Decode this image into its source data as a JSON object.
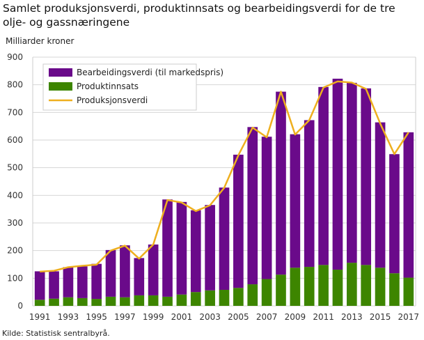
{
  "chart_data": {
    "type": "bar",
    "title": "Samlet produksjonsverdi, produktinnsats og bearbeidingsverdi for de tre olje- og gassnæringene",
    "ylabel": "Milliarder  kroner",
    "ylim": [
      0,
      900
    ],
    "yticks": [
      0,
      100,
      200,
      300,
      400,
      500,
      600,
      700,
      800,
      900
    ],
    "grid": true,
    "legend": "top-left",
    "categories": [
      "1991",
      "1992",
      "1993",
      "1994",
      "1995",
      "1996",
      "1997",
      "1998",
      "1999",
      "2000",
      "2001",
      "2002",
      "2003",
      "2004",
      "2005",
      "2006",
      "2007",
      "2008",
      "2009",
      "2010",
      "2011",
      "2012",
      "2013",
      "2014",
      "2015",
      "2016",
      "2017"
    ],
    "xtick_labels": [
      "1991",
      "1993",
      "1995",
      "1997",
      "1999",
      "2001",
      "2003",
      "2005",
      "2007",
      "2009",
      "2011",
      "2013",
      "2015",
      "2017"
    ],
    "series": [
      {
        "name": "Bearbeidingsverdi (til markedspris)",
        "type": "stacked-bar",
        "color": "#6a0a8a",
        "values": [
          103,
          99,
          109,
          115,
          127,
          169,
          188,
          135,
          184,
          352,
          335,
          296,
          309,
          370,
          482,
          569,
          515,
          662,
          483,
          531,
          644,
          691,
          651,
          639,
          526,
          431,
          526
        ]
      },
      {
        "name": "Produktinnsats",
        "type": "stacked-bar",
        "color": "#3d8500",
        "values": [
          22,
          26,
          31,
          28,
          25,
          33,
          31,
          38,
          38,
          33,
          41,
          50,
          56,
          58,
          65,
          78,
          97,
          113,
          138,
          141,
          148,
          131,
          156,
          148,
          138,
          118,
          102
        ]
      },
      {
        "name": "Produksjonsverdi",
        "type": "line",
        "color": "#eeaf1f",
        "values": [
          124,
          127,
          140,
          145,
          149,
          200,
          218,
          171,
          222,
          383,
          374,
          343,
          364,
          427,
          545,
          645,
          610,
          775,
          620,
          672,
          790,
          812,
          808,
          785,
          660,
          549,
          628
        ]
      }
    ],
    "source": "Kilde: Statistisk sentralbyrå."
  }
}
